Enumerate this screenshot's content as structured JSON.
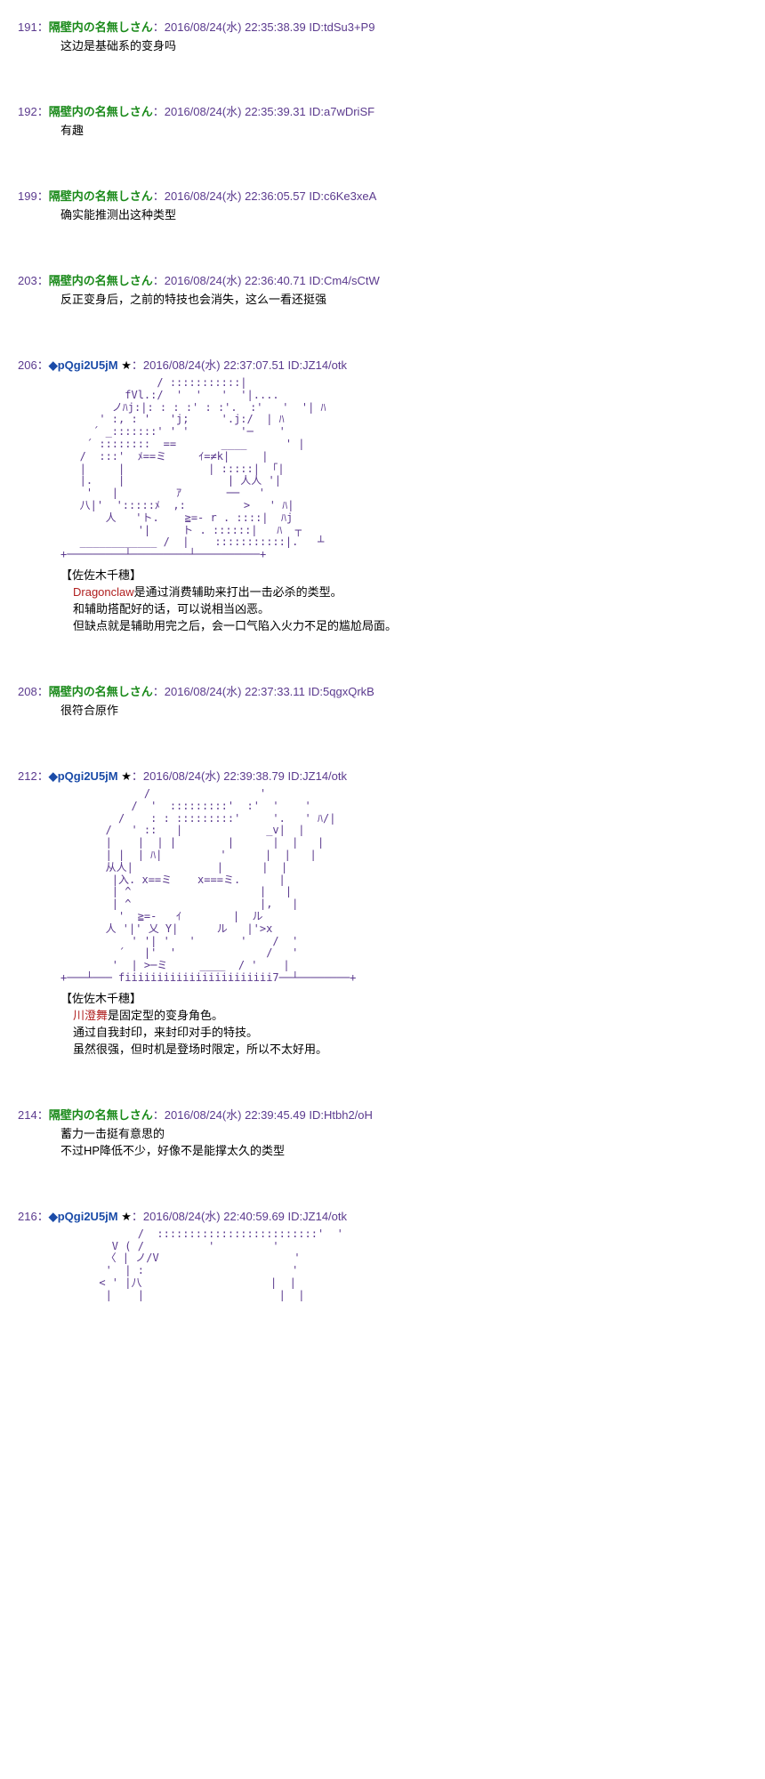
{
  "colors": {
    "post_num": "#5b3a8e",
    "name_green": "#1a8a1a",
    "name_blue": "#1a4ba8",
    "date": "#5b3a8e",
    "body": "#000000",
    "keyword": "#b02020",
    "aa": "#5b3a8e",
    "background": "#ffffff"
  },
  "posts": [
    {
      "num": "191",
      "name": "隔壁内の名無しさん",
      "date": "2016/08/24(水) 22:35:38.39",
      "id": "ID:tdSu3+P9",
      "body_lines": [
        "这边是基础系的变身吗"
      ]
    },
    {
      "num": "192",
      "name": "隔壁内の名無しさん",
      "date": "2016/08/24(水) 22:35:39.31",
      "id": "ID:a7wDriSF",
      "body_lines": [
        "有趣"
      ]
    },
    {
      "num": "199",
      "name": "隔壁内の名無しさん",
      "date": "2016/08/24(水) 22:36:05.57",
      "id": "ID:c6Ke3xeA",
      "body_lines": [
        "确实能推测出这种类型"
      ]
    },
    {
      "num": "203",
      "name": "隔壁内の名無しさん",
      "date": "2016/08/24(水) 22:36:40.71",
      "id": "ID:Cm4/sCtW",
      "body_lines": [
        "反正变身后，之前的特技也会消失，这么一看还挺强"
      ]
    },
    {
      "num": "206",
      "trip": "◆pQgi2U5jM",
      "star": "★",
      "date": "2016/08/24(水) 22:37:07.51",
      "id": "ID:JZ14/otk",
      "aa": "               / :::::::::::|\n          fVl.:/  '  '   '  '|....\n        ノﾊj:|: : : :' : :'.  :'   '  '| ﾊ\n      ' :, : '   'j;     '.j:/  | ﾊ\n     ´ _:::::::' ' '        '─    '\n    ´ ::::::::  ==       ____      ' |\n   /  :::'  ﾒ==ミ     ｲ=≠k|     |\n   |     |             | :::::|  ｢|\n   |.    |                | 人人 '|\n    '   |         ｱ       ──   '\n   八|'  ':::::ﾒ  ,:         >   ' ﾊ|\n       人   'ト.    ≧=- r . ::::|  ﾊj\n            '|     ト . ::::::|   ﾊ  ┬\n   ____________ /  |    :::::::::::|.   ┴\n+─────────┴─────────┴──────────+",
      "title": "【佐佐木千穗】",
      "keyword": "Dragonclaw",
      "body_after_keyword": "是通过消费辅助来打出一击必杀的类型。",
      "body_lines2": [
        "和辅助搭配好的话，可以说相当凶恶。",
        "但缺点就是辅助用完之后，会一口气陷入火力不足的尴尬局面。"
      ]
    },
    {
      "num": "208",
      "name": "隔壁内の名無しさん",
      "date": "2016/08/24(水) 22:37:33.11",
      "id": "ID:5qgxQrkB",
      "body_lines": [
        "很符合原作"
      ]
    },
    {
      "num": "212",
      "trip": "◆pQgi2U5jM",
      "star": "★",
      "date": "2016/08/24(水) 22:39:38.79",
      "id": "ID:JZ14/otk",
      "aa": "             /                 '\n           /  '  :::::::::'  :'  '    '\n         /    : : :::::::::'     '.   ' ﾊ/|\n       /   ' ::   |             _v|  |\n       |    |  | |        |      |  |   |\n       | |  | ﾊ|         '      |  |   |\n       从人|             |      |  |\n        |入. x==ミ    x===ミ.      |\n        | ^                    |   |\n        | ^                    |,   |\n         '  ≧=-   ｲ        |  ル\n       人 '|' 乂 Y|      ル   |'>x\n           ' '| '   '       '    /  '\n         ´   |'  '              /   '\n        '  | >─ミ     ____  / '    |\n+───┴─── fiiiiiiiiiiiiiiiiiiiiiii7──┴────────+",
      "title": "【佐佐木千穗】",
      "keyword": "川澄舞",
      "body_after_keyword": "是固定型的变身角色。",
      "body_lines2": [
        "通过自我封印，来封印对手的特技。",
        "虽然很强，但时机是登场时限定，所以不太好用。"
      ]
    },
    {
      "num": "214",
      "name": "隔壁内の名無しさん",
      "date": "2016/08/24(水) 22:39:45.49",
      "id": "ID:Htbh2/oH",
      "body_lines": [
        "蓄力一击挺有意思的",
        "不过HP降低不少，好像不是能撑太久的类型"
      ]
    },
    {
      "num": "216",
      "trip": "◆pQgi2U5jM",
      "star": "★",
      "date": "2016/08/24(水) 22:40:59.69",
      "id": "ID:JZ14/otk",
      "aa": "            /  :::::::::::::::::::::::::'  '\n        V ( /          '         '\n       〈 | ノ/V                     '\n       '  | :                       '\n      < ' |八                    |  |\n       |    |                     |  |"
    }
  ]
}
